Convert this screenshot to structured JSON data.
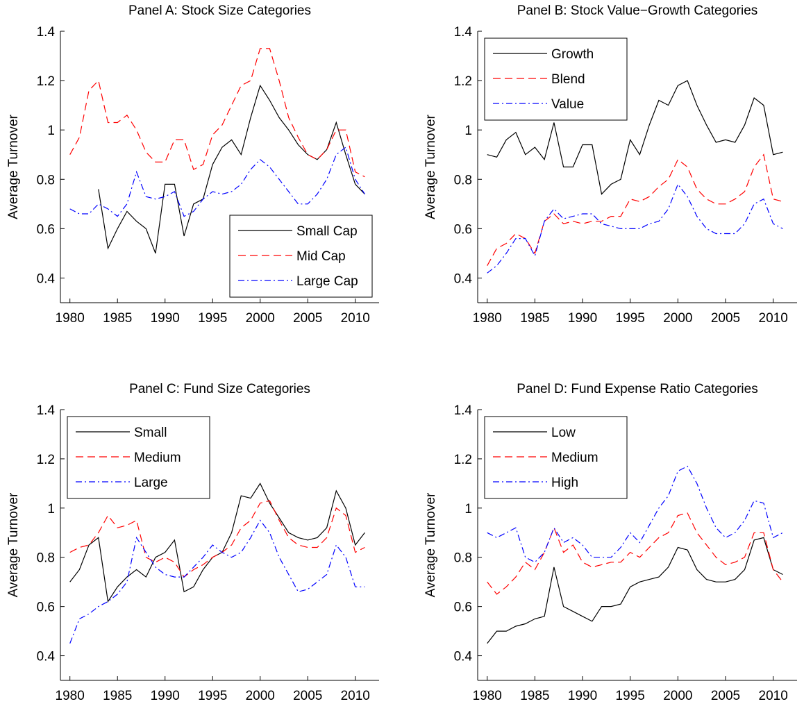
{
  "chart_data": [
    {
      "type": "line",
      "title": "Panel A: Stock Size Categories",
      "y_label": "Average Turnover",
      "x": [
        1980,
        1981,
        1982,
        1983,
        1984,
        1985,
        1986,
        1987,
        1988,
        1989,
        1990,
        1991,
        1992,
        1993,
        1994,
        1995,
        1996,
        1997,
        1998,
        1999,
        2000,
        2001,
        2002,
        2003,
        2004,
        2005,
        2006,
        2007,
        2008,
        2009,
        2010,
        2011
      ],
      "xlim": [
        1979,
        2012.5
      ],
      "xticks": [
        1980,
        1985,
        1990,
        1995,
        2000,
        2005,
        2010
      ],
      "ylim": [
        0.3,
        1.4
      ],
      "yticks": [
        0.4,
        0.6,
        0.8,
        1,
        1.2,
        1.4
      ],
      "legend": "lower right",
      "series": [
        {
          "name": "Small Cap",
          "color": "#000000",
          "dash": "solid",
          "values": [
            null,
            null,
            null,
            0.76,
            0.52,
            0.6,
            0.67,
            0.63,
            0.6,
            0.5,
            0.78,
            0.78,
            0.57,
            0.7,
            0.72,
            0.86,
            0.93,
            0.96,
            0.9,
            1.05,
            1.18,
            1.12,
            1.05,
            1.0,
            0.94,
            0.9,
            0.88,
            0.92,
            1.03,
            0.9,
            0.78,
            0.74
          ]
        },
        {
          "name": "Mid Cap",
          "color": "#ff0000",
          "dash": "dashed",
          "values": [
            0.9,
            0.97,
            1.16,
            1.2,
            1.03,
            1.03,
            1.06,
            1.0,
            0.91,
            0.87,
            0.87,
            0.96,
            0.96,
            0.84,
            0.86,
            0.98,
            1.02,
            1.1,
            1.18,
            1.2,
            1.33,
            1.33,
            1.2,
            1.05,
            0.97,
            0.9,
            0.88,
            0.92,
            1.0,
            1.0,
            0.83,
            0.81
          ]
        },
        {
          "name": "Large Cap",
          "color": "#0000ff",
          "dash": "dashdot",
          "values": [
            0.68,
            0.66,
            0.66,
            0.7,
            0.68,
            0.65,
            0.7,
            0.83,
            0.73,
            0.72,
            0.73,
            0.75,
            0.65,
            0.67,
            0.72,
            0.75,
            0.74,
            0.75,
            0.78,
            0.84,
            0.88,
            0.85,
            0.8,
            0.75,
            0.7,
            0.7,
            0.74,
            0.8,
            0.9,
            0.93,
            0.8,
            0.74
          ]
        }
      ]
    },
    {
      "type": "line",
      "title": "Panel B: Stock Value−Growth Categories",
      "y_label": "Average Turnover",
      "x": [
        1980,
        1981,
        1982,
        1983,
        1984,
        1985,
        1986,
        1987,
        1988,
        1989,
        1990,
        1991,
        1992,
        1993,
        1994,
        1995,
        1996,
        1997,
        1998,
        1999,
        2000,
        2001,
        2002,
        2003,
        2004,
        2005,
        2006,
        2007,
        2008,
        2009,
        2010,
        2011
      ],
      "xlim": [
        1979,
        2012.5
      ],
      "xticks": [
        1980,
        1985,
        1990,
        1995,
        2000,
        2005,
        2010
      ],
      "ylim": [
        0.3,
        1.4
      ],
      "yticks": [
        0.4,
        0.6,
        0.8,
        1,
        1.2,
        1.4
      ],
      "legend": "upper left",
      "series": [
        {
          "name": "Growth",
          "color": "#000000",
          "dash": "solid",
          "values": [
            0.9,
            0.89,
            0.96,
            0.99,
            0.9,
            0.93,
            0.88,
            1.03,
            0.85,
            0.85,
            0.94,
            0.94,
            0.74,
            0.78,
            0.8,
            0.96,
            0.9,
            1.02,
            1.12,
            1.1,
            1.18,
            1.2,
            1.1,
            1.02,
            0.95,
            0.96,
            0.95,
            1.02,
            1.13,
            1.1,
            0.9,
            0.91
          ]
        },
        {
          "name": "Blend",
          "color": "#ff0000",
          "dash": "dashed",
          "values": [
            0.45,
            0.52,
            0.54,
            0.58,
            0.56,
            0.5,
            0.63,
            0.66,
            0.62,
            0.63,
            0.62,
            0.63,
            0.63,
            0.65,
            0.65,
            0.72,
            0.71,
            0.73,
            0.77,
            0.8,
            0.88,
            0.85,
            0.76,
            0.72,
            0.7,
            0.7,
            0.72,
            0.75,
            0.85,
            0.9,
            0.72,
            0.71
          ]
        },
        {
          "name": "Value",
          "color": "#0000ff",
          "dash": "dashdot",
          "values": [
            0.42,
            0.45,
            0.5,
            0.56,
            0.56,
            0.49,
            0.63,
            0.68,
            0.64,
            0.65,
            0.66,
            0.66,
            0.62,
            0.61,
            0.6,
            0.6,
            0.6,
            0.62,
            0.63,
            0.68,
            0.78,
            0.73,
            0.65,
            0.6,
            0.58,
            0.58,
            0.58,
            0.62,
            0.7,
            0.72,
            0.62,
            0.6
          ]
        }
      ]
    },
    {
      "type": "line",
      "title": "Panel C: Fund Size Categories",
      "y_label": "Average Turnover",
      "x": [
        1980,
        1981,
        1982,
        1983,
        1984,
        1985,
        1986,
        1987,
        1988,
        1989,
        1990,
        1991,
        1992,
        1993,
        1994,
        1995,
        1996,
        1997,
        1998,
        1999,
        2000,
        2001,
        2002,
        2003,
        2004,
        2005,
        2006,
        2007,
        2008,
        2009,
        2010,
        2011
      ],
      "xlim": [
        1979,
        2012.5
      ],
      "xticks": [
        1980,
        1985,
        1990,
        1995,
        2000,
        2005,
        2010
      ],
      "ylim": [
        0.3,
        1.4
      ],
      "yticks": [
        0.4,
        0.6,
        0.8,
        1,
        1.2,
        1.4
      ],
      "legend": "upper left",
      "series": [
        {
          "name": "Small",
          "color": "#000000",
          "dash": "solid",
          "values": [
            0.7,
            0.75,
            0.85,
            0.88,
            0.62,
            0.68,
            0.72,
            0.75,
            0.72,
            0.8,
            0.82,
            0.87,
            0.66,
            0.68,
            0.75,
            0.8,
            0.82,
            0.9,
            1.05,
            1.04,
            1.1,
            1.02,
            0.96,
            0.9,
            0.88,
            0.87,
            0.88,
            0.92,
            1.07,
            1.0,
            0.85,
            0.9
          ]
        },
        {
          "name": "Medium",
          "color": "#ff0000",
          "dash": "dashed",
          "values": [
            0.82,
            0.84,
            0.85,
            0.9,
            0.97,
            0.92,
            0.93,
            0.95,
            0.8,
            0.78,
            0.8,
            0.78,
            0.72,
            0.75,
            0.77,
            0.8,
            0.82,
            0.85,
            0.92,
            0.95,
            1.02,
            1.03,
            0.95,
            0.88,
            0.85,
            0.84,
            0.84,
            0.88,
            1.0,
            0.97,
            0.82,
            0.84
          ]
        },
        {
          "name": "Large",
          "color": "#0000ff",
          "dash": "dashdot",
          "values": [
            0.45,
            0.55,
            0.57,
            0.6,
            0.62,
            0.65,
            0.7,
            0.88,
            0.82,
            0.76,
            0.73,
            0.72,
            0.72,
            0.76,
            0.8,
            0.85,
            0.82,
            0.8,
            0.82,
            0.88,
            0.95,
            0.9,
            0.8,
            0.73,
            0.66,
            0.67,
            0.7,
            0.73,
            0.85,
            0.8,
            0.68,
            0.68
          ]
        }
      ]
    },
    {
      "type": "line",
      "title": "Panel D: Fund Expense Ratio Categories",
      "y_label": "Average Turnover",
      "x": [
        1980,
        1981,
        1982,
        1983,
        1984,
        1985,
        1986,
        1987,
        1988,
        1989,
        1990,
        1991,
        1992,
        1993,
        1994,
        1995,
        1996,
        1997,
        1998,
        1999,
        2000,
        2001,
        2002,
        2003,
        2004,
        2005,
        2006,
        2007,
        2008,
        2009,
        2010,
        2011
      ],
      "xlim": [
        1979,
        2012.5
      ],
      "xticks": [
        1980,
        1985,
        1990,
        1995,
        2000,
        2005,
        2010
      ],
      "ylim": [
        0.3,
        1.4
      ],
      "yticks": [
        0.4,
        0.6,
        0.8,
        1,
        1.2,
        1.4
      ],
      "legend": "upper left",
      "series": [
        {
          "name": "Low",
          "color": "#000000",
          "dash": "solid",
          "values": [
            0.45,
            0.5,
            0.5,
            0.52,
            0.53,
            0.55,
            0.56,
            0.76,
            0.6,
            0.58,
            0.56,
            0.54,
            0.6,
            0.6,
            0.61,
            0.68,
            0.7,
            0.71,
            0.72,
            0.76,
            0.84,
            0.83,
            0.75,
            0.71,
            0.7,
            0.7,
            0.71,
            0.75,
            0.87,
            0.88,
            0.75,
            0.73
          ]
        },
        {
          "name": "Medium",
          "color": "#ff0000",
          "dash": "dashed",
          "values": [
            0.7,
            0.65,
            0.68,
            0.72,
            0.78,
            0.75,
            0.82,
            0.92,
            0.82,
            0.85,
            0.78,
            0.76,
            0.77,
            0.78,
            0.78,
            0.82,
            0.8,
            0.84,
            0.88,
            0.9,
            0.97,
            0.98,
            0.9,
            0.85,
            0.8,
            0.77,
            0.78,
            0.8,
            0.9,
            0.9,
            0.75,
            0.7
          ]
        },
        {
          "name": "High",
          "color": "#0000ff",
          "dash": "dashdot",
          "values": [
            0.9,
            0.88,
            0.9,
            0.92,
            0.8,
            0.78,
            0.82,
            0.92,
            0.86,
            0.88,
            0.85,
            0.8,
            0.8,
            0.8,
            0.84,
            0.9,
            0.86,
            0.93,
            1.0,
            1.05,
            1.15,
            1.17,
            1.1,
            1.0,
            0.92,
            0.88,
            0.9,
            0.95,
            1.03,
            1.02,
            0.88,
            0.9
          ]
        }
      ]
    }
  ]
}
